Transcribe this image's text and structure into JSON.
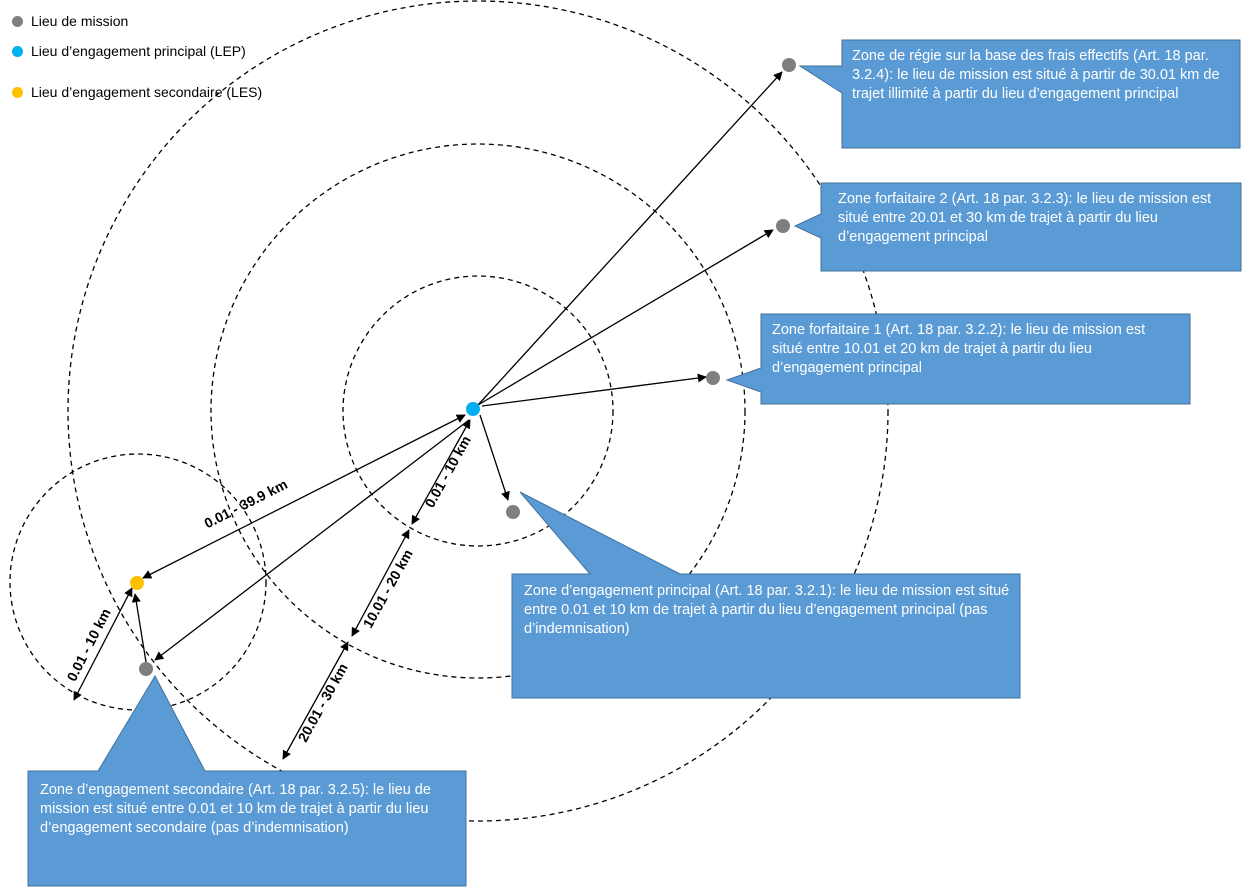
{
  "legend": [
    {
      "label": "Lieu de mission",
      "color": "#7f7f7f"
    },
    {
      "label": "Lieu d’engagement principal (LEP)",
      "color": "#00b0f0"
    },
    {
      "label": "Lieu d’engagement secondaire (LES)",
      "color": "#ffc000"
    }
  ],
  "colors": {
    "callout_fill": "#5b9bd5",
    "callout_stroke": "#41719c",
    "circle_stroke": "#000000"
  },
  "callouts": {
    "zone_regie": "Zone de régie sur la base des frais effectifs (Art. 18 par. 3.2.4): le lieu de mission est situé à partir de 30.01 km de trajet illimité à partir du lieu d’engagement principal",
    "zone_forfaitaire_2": "Zone forfaitaire 2 (Art. 18 par. 3.2.3): le lieu de mission est situé entre 20.01 et 30 km de trajet à partir du lieu d’engagement principal",
    "zone_forfaitaire_1": "Zone forfaitaire 1 (Art. 18 par. 3.2.2): le lieu de mission est situé entre 10.01 et 20 km de trajet à partir du lieu d’engagement principal",
    "zone_engagement_principal": "Zone d’engagement principal (Art. 18 par. 3.2.1): le lieu de mission est situé entre 0.01 et 10 km de trajet à partir du lieu d’engagement principal (pas d’indemnisation)",
    "zone_engagement_secondaire": "Zone d’engagement secondaire (Art. 18 par. 3.2.5): le lieu de mission est situé entre 0.01 et 10 km de trajet à partir du lieu d’engagement secondaire (pas d’indemnisation)"
  },
  "distance_labels": {
    "lep_to_les": "0.01 - 39.9 km",
    "lep_zone_1": "0.01 - 10 km",
    "lep_zone_2": "10.01 - 20 km",
    "lep_zone_3": "20.01 - 30 km",
    "les_zone": "0.01 - 10 km"
  }
}
